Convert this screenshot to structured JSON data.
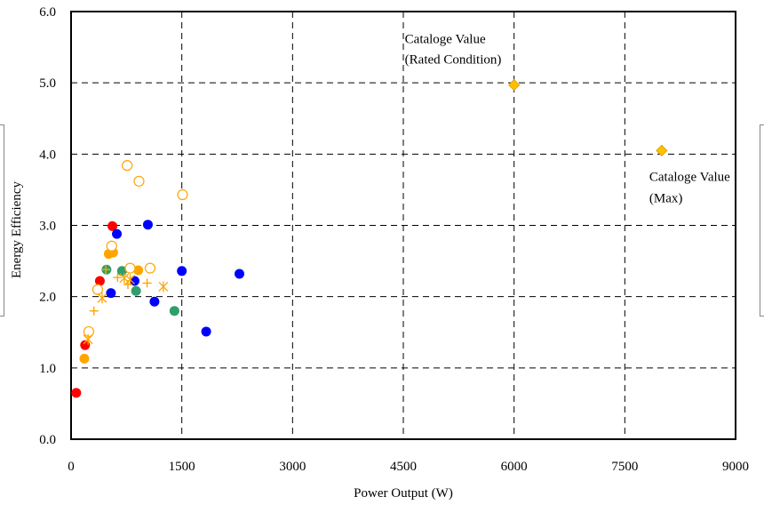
{
  "chart_data": {
    "type": "scatter",
    "title": "",
    "xlabel": "Power Output (W)",
    "ylabel": "Energy Efficiency",
    "xlim": [
      0,
      9000
    ],
    "ylim": [
      0,
      6
    ],
    "x_ticks": [
      0,
      1500,
      3000,
      4500,
      6000,
      7500,
      9000
    ],
    "y_ticks": [
      0,
      1,
      2,
      3,
      4,
      5,
      6
    ],
    "x_tick_labels": [
      "0",
      "1500",
      "3000",
      "4500",
      "6000",
      "7500",
      "9000"
    ],
    "y_tick_labels": [
      "0.0",
      "1.0",
      "2.0",
      "3.0",
      "4.0",
      "5.0",
      "6.0"
    ],
    "grid": true,
    "legend": "none",
    "series": [
      {
        "marker": "circle-filled",
        "color": "#ff0000",
        "points": [
          [
            70,
            0.65
          ],
          [
            190,
            1.32
          ],
          [
            390,
            2.22
          ],
          [
            560,
            2.99
          ]
        ]
      },
      {
        "marker": "circle-filled",
        "color": "#0000ff",
        "points": [
          [
            540,
            2.05
          ],
          [
            620,
            2.88
          ],
          [
            860,
            2.22
          ],
          [
            1040,
            3.01
          ],
          [
            1130,
            1.93
          ],
          [
            1500,
            2.36
          ],
          [
            1830,
            1.51
          ],
          [
            2280,
            2.32
          ]
        ]
      },
      {
        "marker": "circle-filled",
        "color": "#2e9e6a",
        "points": [
          [
            480,
            2.38
          ],
          [
            690,
            2.36
          ],
          [
            880,
            2.08
          ],
          [
            1400,
            1.8
          ]
        ]
      },
      {
        "marker": "circle-filled",
        "color": "#ffa500",
        "points": [
          [
            180,
            1.13
          ],
          [
            510,
            2.6
          ],
          [
            570,
            2.62
          ],
          [
            910,
            2.37
          ]
        ]
      },
      {
        "marker": "circle-open",
        "color": "#ffa500",
        "points": [
          [
            240,
            1.51
          ],
          [
            360,
            2.1
          ],
          [
            550,
            2.71
          ],
          [
            760,
            3.84
          ],
          [
            800,
            2.4
          ],
          [
            920,
            3.62
          ],
          [
            1070,
            2.4
          ],
          [
            1510,
            3.43
          ]
        ]
      },
      {
        "marker": "plus",
        "color": "#ffa500",
        "points": [
          [
            310,
            1.8
          ],
          [
            470,
            2.38
          ],
          [
            630,
            2.27
          ],
          [
            770,
            2.17
          ],
          [
            1030,
            2.19
          ]
        ]
      },
      {
        "marker": "asterisk",
        "color": "#ffa500",
        "points": [
          [
            230,
            1.4
          ],
          [
            420,
            1.98
          ],
          [
            720,
            2.26
          ],
          [
            800,
            2.24
          ],
          [
            1250,
            2.14
          ]
        ]
      },
      {
        "marker": "diamond",
        "color": "#ffc000",
        "points": [
          [
            6000,
            4.97
          ],
          [
            8000,
            4.05
          ]
        ]
      }
    ],
    "annotations": [
      {
        "text": "Cataloge Value",
        "x": 6000,
        "y": 4.97
      },
      {
        "text": "(Rated Condition)",
        "x": 6000,
        "y": 4.97
      },
      {
        "text": "Cataloge Value",
        "x": 8000,
        "y": 4.05
      },
      {
        "text": "(Max)",
        "x": 8000,
        "y": 4.05
      }
    ]
  }
}
